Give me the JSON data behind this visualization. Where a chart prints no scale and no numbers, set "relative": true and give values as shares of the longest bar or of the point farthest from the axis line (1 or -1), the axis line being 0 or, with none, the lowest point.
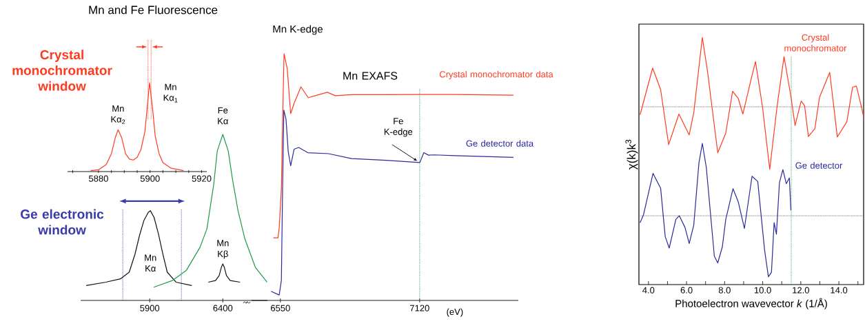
{
  "chart_data": [
    {
      "type": "line",
      "title": "Mn and Fe Fluorescence",
      "relative": true,
      "xlim": [
        5868,
        5922
      ],
      "xticks": [
        {
          "value": 5870,
          "label": null
        },
        5880,
        {
          "value": 5885,
          "label": null
        },
        {
          "value": 5890,
          "label": null
        },
        {
          "value": 5895,
          "label": null
        },
        5900,
        {
          "value": 5905,
          "label": null
        },
        {
          "value": 5910,
          "label": null
        },
        {
          "value": 5915,
          "label": null
        },
        5920
      ],
      "series": [
        {
          "color": "#ff3b1f",
          "x": [
            5877,
            5880,
            5883,
            5885,
            5886.5,
            5887.6,
            5889,
            5890.5,
            5892,
            5893.5,
            5895,
            5896.5,
            5898,
            5899,
            5899.8,
            5901,
            5902,
            5903.5,
            5905,
            5908,
            5913
          ],
          "values": [
            0.01,
            0.02,
            0.08,
            0.2,
            0.38,
            0.47,
            0.38,
            0.2,
            0.14,
            0.13,
            0.16,
            0.25,
            0.45,
            0.75,
            1.0,
            0.7,
            0.4,
            0.2,
            0.1,
            0.04,
            0.01
          ]
        }
      ],
      "ref_lines": [
        {
          "axis": "x",
          "value": 5899.2,
          "color": "#ff3b1f",
          "line_style": "dotted"
        },
        {
          "axis": "x",
          "value": 5900.4,
          "color": "#ff3b1f",
          "line_style": "dotted"
        }
      ],
      "annotations": [
        "Crystal monochromator window",
        {
          "text": "Mn Kα$_{2}$",
          "x": 5887.6,
          "y": 0.47
        },
        {
          "text": "Mn Kα$_{1}$",
          "x": 5899.8,
          "y": 1.0
        }
      ]
    },
    {
      "type": "line",
      "relative": true,
      "xlim": [
        5428,
        6705
      ],
      "xticks": [
        5900,
        6400
      ],
      "series": [
        {
          "name": "Mn Kα",
          "color": "#111111",
          "x": [
            5466,
            5600,
            5700,
            5760,
            5800,
            5830,
            5860,
            5890,
            5905,
            5930,
            5960,
            5990,
            6020,
            6080,
            6188
          ],
          "values": [
            0.09,
            0.11,
            0.13,
            0.17,
            0.28,
            0.39,
            0.48,
            0.53,
            0.54,
            0.5,
            0.4,
            0.28,
            0.17,
            0.11,
            0.09
          ]
        },
        {
          "name": "Fe Kα",
          "color": "#1e9a46",
          "x": [
            5928,
            6055,
            6150,
            6244,
            6291,
            6338,
            6362,
            6400,
            6437,
            6466,
            6504,
            6551,
            6622,
            6702
          ],
          "values": [
            0.08,
            0.12,
            0.18,
            0.32,
            0.43,
            0.7,
            0.9,
            1.0,
            0.9,
            0.73,
            0.54,
            0.37,
            0.2,
            0.11
          ]
        },
        {
          "name": "Mn Kβ",
          "color": "#111111",
          "x": [
            6301,
            6350,
            6375,
            6390,
            6400,
            6410,
            6425,
            6450,
            6518
          ],
          "values": [
            0.11,
            0.12,
            0.15,
            0.2,
            0.22,
            0.2,
            0.15,
            0.12,
            0.11
          ]
        }
      ],
      "ref_lines": [
        {
          "axis": "x",
          "value": 5716,
          "color": "#3a3aa8",
          "line_style": "dotted"
        },
        {
          "axis": "x",
          "value": 6117,
          "color": "#3a3aa8",
          "line_style": "dotted"
        }
      ],
      "annotations": [
        "Ge electronic window"
      ]
    },
    {
      "type": "line",
      "title": "Mn K-edge",
      "xlabel": "(eV)",
      "relative": true,
      "xlim": [
        6432,
        7524
      ],
      "xticks": [
        6550,
        7120
      ],
      "series": [
        {
          "name": "Crystal monochromator data",
          "color": "#ff3b1f",
          "x": [
            6521,
            6540,
            6545,
            6554,
            6559,
            6565,
            6578,
            6592,
            6606,
            6634,
            6664,
            6700,
            6742,
            6775,
            6841,
            6982,
            7123,
            7264,
            7504
          ],
          "values": [
            0.254,
            0.254,
            0.291,
            0.455,
            0.735,
            1.0,
            0.939,
            0.757,
            0.799,
            0.866,
            0.822,
            0.832,
            0.844,
            0.83,
            0.834,
            0.834,
            0.835,
            0.835,
            0.832
          ]
        },
        {
          "name": "Ge detector data",
          "color": "#2a2a9a",
          "x": [
            6512,
            6545,
            6554,
            6559,
            6564,
            6573,
            6582,
            6592,
            6606,
            6625,
            6662,
            6747,
            6841,
            6982,
            7121,
            7137,
            7156,
            7180,
            7264,
            7504
          ],
          "values": [
            0.037,
            0.022,
            0.082,
            0.455,
            0.771,
            0.735,
            0.603,
            0.546,
            0.613,
            0.62,
            0.599,
            0.595,
            0.575,
            0.568,
            0.559,
            0.599,
            0.589,
            0.59,
            0.587,
            0.58
          ]
        }
      ],
      "ref_lines": [
        {
          "axis": "x",
          "value": 7120,
          "color": "#1e9a46",
          "line_style": "dotted"
        }
      ],
      "annotations": [
        "Mn EXAFS",
        {
          "text": "Fe K-edge",
          "x": 7120,
          "y": 0.559
        }
      ]
    },
    {
      "type": "line",
      "xlabel": "Photoelectron wavevector *k* (1/Å)",
      "ylabel": "χ(k)k$^{3}$",
      "relative": true,
      "xlim": [
        3.5,
        15.3
      ],
      "xticks": [
        {
          "value": 4,
          "label": "4.0"
        },
        {
          "value": 5,
          "label": null
        },
        {
          "value": 6,
          "label": "6.0"
        },
        {
          "value": 7,
          "label": null
        },
        {
          "value": 8,
          "label": "8.0"
        },
        {
          "value": 9,
          "label": null
        },
        {
          "value": 10,
          "label": "10.0"
        },
        {
          "value": 11,
          "label": null
        },
        {
          "value": 12,
          "label": "12.0"
        },
        {
          "value": 13,
          "label": null
        },
        {
          "value": 14,
          "label": "14.0"
        },
        {
          "value": 15,
          "label": null
        }
      ],
      "series": [
        {
          "name": "Crystal monochromator",
          "color": "#ff3b1f",
          "x": [
            3.56,
            4.22,
            4.64,
            5.06,
            5.6,
            6.14,
            6.38,
            6.83,
            7.1,
            7.64,
            8.06,
            8.42,
            8.72,
            8.96,
            9.38,
            9.62,
            9.98,
            10.37,
            10.76,
            11.12,
            11.48,
            11.7,
            12.02,
            12.2,
            12.4,
            12.74,
            12.98,
            13.52,
            13.92,
            14.42,
            14.72,
            14.92,
            15.2,
            15.3
          ],
          "values": [
            0.677,
            0.872,
            0.782,
            0.552,
            0.68,
            0.593,
            0.686,
            1.0,
            0.859,
            0.518,
            0.6,
            0.775,
            0.744,
            0.68,
            0.821,
            0.899,
            0.715,
            0.449,
            0.715,
            0.92,
            0.754,
            0.632,
            0.734,
            0.715,
            0.586,
            0.619,
            0.749,
            0.854,
            0.584,
            0.648,
            0.792,
            0.797,
            0.705,
            0.667
          ]
        },
        {
          "name": "Ge detector",
          "color": "#2a2a9a",
          "x": [
            3.56,
            3.74,
            4.24,
            4.64,
            4.88,
            5.09,
            5.44,
            5.62,
            5.92,
            6.14,
            6.38,
            6.65,
            6.83,
            7.04,
            7.46,
            7.64,
            7.88,
            8.06,
            8.44,
            8.72,
            9.04,
            9.44,
            9.74,
            10.1,
            10.3,
            10.46,
            10.6,
            10.72,
            10.88,
            11.06,
            11.24,
            11.4,
            11.48
          ],
          "values": [
            0.226,
            0.259,
            0.432,
            0.37,
            0.168,
            0.12,
            0.24,
            0.255,
            0.206,
            0.139,
            0.216,
            0.475,
            0.557,
            0.456,
            0.086,
            0.058,
            0.125,
            0.24,
            0.368,
            0.312,
            0.202,
            0.42,
            0.398,
            0.111,
            0.0,
            0.019,
            0.226,
            0.178,
            0.394,
            0.448,
            0.389,
            0.413,
            0.278
          ]
        }
      ],
      "ref_lines": [
        {
          "axis": "x",
          "value": 11.5,
          "color": "#1e9a46",
          "line_style": "dotted"
        },
        {
          "axis": "y",
          "value": 0.71,
          "color": "#555555",
          "line_style": "dotted"
        },
        {
          "axis": "y",
          "value": 0.255,
          "color": "#555555",
          "line_style": "dotted"
        }
      ]
    }
  ]
}
